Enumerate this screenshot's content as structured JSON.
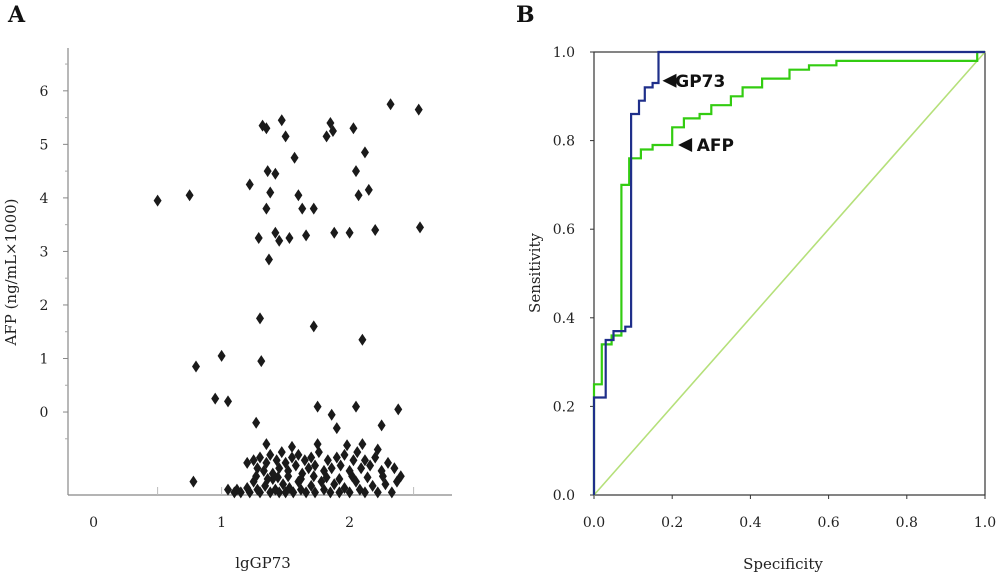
{
  "panels": {
    "a_label": "A",
    "b_label": "B"
  },
  "chart_data": [
    {
      "type": "scatter",
      "panel": "A",
      "xlabel": "lgGP73",
      "ylabel": "AFP (ng/mL×1000)",
      "x_ticks": [
        "0",
        "1",
        "2"
      ],
      "y_ticks": [
        "0",
        "1",
        "2",
        "3",
        "4",
        "5",
        "6"
      ],
      "xlim": [
        -0.2,
        2.8
      ],
      "ylim": [
        -1.55,
        6.8
      ],
      "marker": "diamond",
      "marker_color": "#1a1a1a",
      "points": [
        [
          0.5,
          3.95
        ],
        [
          0.75,
          4.05
        ],
        [
          0.8,
          0.85
        ],
        [
          0.95,
          0.25
        ],
        [
          1.0,
          1.05
        ],
        [
          1.05,
          0.2
        ],
        [
          1.22,
          4.25
        ],
        [
          1.27,
          -0.2
        ],
        [
          1.29,
          3.25
        ],
        [
          1.3,
          1.75
        ],
        [
          1.31,
          0.95
        ],
        [
          1.32,
          5.35
        ],
        [
          1.35,
          5.3
        ],
        [
          1.37,
          2.85
        ],
        [
          1.36,
          4.5
        ],
        [
          1.35,
          3.8
        ],
        [
          1.38,
          4.1
        ],
        [
          1.42,
          4.45
        ],
        [
          1.42,
          3.35
        ],
        [
          1.45,
          3.2
        ],
        [
          1.47,
          5.45
        ],
        [
          1.5,
          5.15
        ],
        [
          1.53,
          3.25
        ],
        [
          1.57,
          4.75
        ],
        [
          1.6,
          4.05
        ],
        [
          1.63,
          3.8
        ],
        [
          1.66,
          3.3
        ],
        [
          1.72,
          1.6
        ],
        [
          1.72,
          3.8
        ],
        [
          1.75,
          0.1
        ],
        [
          1.82,
          5.15
        ],
        [
          1.85,
          5.4
        ],
        [
          1.87,
          5.25
        ],
        [
          1.88,
          3.35
        ],
        [
          1.86,
          -0.05
        ],
        [
          1.9,
          -0.3
        ],
        [
          2.0,
          3.35
        ],
        [
          2.03,
          5.3
        ],
        [
          2.05,
          0.1
        ],
        [
          2.05,
          4.5
        ],
        [
          2.07,
          4.05
        ],
        [
          2.1,
          1.35
        ],
        [
          2.12,
          4.85
        ],
        [
          2.15,
          4.15
        ],
        [
          2.2,
          3.4
        ],
        [
          2.25,
          -0.25
        ],
        [
          2.32,
          5.75
        ],
        [
          2.38,
          0.05
        ],
        [
          2.54,
          5.65
        ],
        [
          2.55,
          3.45
        ],
        [
          0.78,
          -1.3
        ],
        [
          1.05,
          -1.45
        ],
        [
          1.1,
          -1.5
        ],
        [
          1.12,
          -1.45
        ],
        [
          1.15,
          -1.5
        ],
        [
          1.2,
          -1.42
        ],
        [
          1.22,
          -1.5
        ],
        [
          1.25,
          -1.3
        ],
        [
          1.28,
          -1.45
        ],
        [
          1.3,
          -1.5
        ],
        [
          1.34,
          -1.38
        ],
        [
          1.38,
          -1.5
        ],
        [
          1.4,
          -1.25
        ],
        [
          1.42,
          -1.45
        ],
        [
          1.45,
          -1.5
        ],
        [
          1.48,
          -1.35
        ],
        [
          1.5,
          -1.5
        ],
        [
          1.53,
          -1.42
        ],
        [
          1.56,
          -1.5
        ],
        [
          1.6,
          -1.3
        ],
        [
          1.62,
          -1.45
        ],
        [
          1.66,
          -1.5
        ],
        [
          1.7,
          -1.38
        ],
        [
          1.73,
          -1.5
        ],
        [
          1.78,
          -1.3
        ],
        [
          1.8,
          -1.45
        ],
        [
          1.85,
          -1.5
        ],
        [
          1.88,
          -1.35
        ],
        [
          1.92,
          -1.5
        ],
        [
          1.96,
          -1.42
        ],
        [
          2.0,
          -1.5
        ],
        [
          2.05,
          -1.3
        ],
        [
          2.08,
          -1.45
        ],
        [
          2.12,
          -1.5
        ],
        [
          2.18,
          -1.38
        ],
        [
          2.22,
          -1.5
        ],
        [
          2.28,
          -1.35
        ],
        [
          2.33,
          -1.5
        ],
        [
          2.37,
          -1.3
        ],
        [
          1.2,
          -0.95
        ],
        [
          1.25,
          -0.9
        ],
        [
          1.28,
          -1.05
        ],
        [
          1.3,
          -0.85
        ],
        [
          1.33,
          -1.1
        ],
        [
          1.35,
          -0.95
        ],
        [
          1.38,
          -0.8
        ],
        [
          1.4,
          -1.15
        ],
        [
          1.43,
          -0.9
        ],
        [
          1.45,
          -1.05
        ],
        [
          1.47,
          -0.75
        ],
        [
          1.5,
          -0.95
        ],
        [
          1.52,
          -1.1
        ],
        [
          1.55,
          -0.85
        ],
        [
          1.58,
          -1.0
        ],
        [
          1.6,
          -0.8
        ],
        [
          1.63,
          -1.15
        ],
        [
          1.65,
          -0.9
        ],
        [
          1.68,
          -1.05
        ],
        [
          1.7,
          -0.85
        ],
        [
          1.73,
          -1.0
        ],
        [
          1.76,
          -0.75
        ],
        [
          1.8,
          -1.1
        ],
        [
          1.83,
          -0.9
        ],
        [
          1.86,
          -1.05
        ],
        [
          1.9,
          -0.85
        ],
        [
          1.93,
          -1.0
        ],
        [
          1.96,
          -0.8
        ],
        [
          2.0,
          -1.1
        ],
        [
          2.03,
          -0.9
        ],
        [
          2.06,
          -0.75
        ],
        [
          2.09,
          -1.05
        ],
        [
          2.12,
          -0.9
        ],
        [
          2.16,
          -1.0
        ],
        [
          2.2,
          -0.85
        ],
        [
          2.25,
          -1.1
        ],
        [
          2.3,
          -0.95
        ],
        [
          2.35,
          -1.05
        ],
        [
          2.4,
          -1.2
        ],
        [
          1.27,
          -1.2
        ],
        [
          1.36,
          -1.25
        ],
        [
          1.44,
          -1.22
        ],
        [
          1.52,
          -1.2
        ],
        [
          1.62,
          -1.25
        ],
        [
          1.72,
          -1.2
        ],
        [
          1.82,
          -1.22
        ],
        [
          1.92,
          -1.25
        ],
        [
          2.02,
          -1.2
        ],
        [
          2.14,
          -1.22
        ],
        [
          2.26,
          -1.2
        ],
        [
          2.1,
          -0.6
        ],
        [
          1.55,
          -0.65
        ],
        [
          1.75,
          -0.6
        ],
        [
          1.98,
          -0.62
        ],
        [
          1.35,
          -0.6
        ],
        [
          2.22,
          -0.7
        ]
      ]
    },
    {
      "type": "line",
      "panel": "B",
      "xlabel": "Specificity",
      "ylabel": "Sensitivity",
      "x_ticks": [
        "0.0",
        "0.2",
        "0.4",
        "0.6",
        "0.8",
        "1.0"
      ],
      "y_ticks": [
        "0.0",
        "0.2",
        "0.4",
        "0.6",
        "0.8",
        "1.0"
      ],
      "xlim": [
        0,
        1
      ],
      "ylim": [
        0,
        1
      ],
      "series": [
        {
          "name": "GP73",
          "color": "#1f2f8a",
          "points": [
            [
              0,
              0
            ],
            [
              0,
              0.22
            ],
            [
              0.03,
              0.22
            ],
            [
              0.03,
              0.35
            ],
            [
              0.05,
              0.35
            ],
            [
              0.05,
              0.37
            ],
            [
              0.08,
              0.37
            ],
            [
              0.08,
              0.38
            ],
            [
              0.095,
              0.38
            ],
            [
              0.095,
              0.86
            ],
            [
              0.115,
              0.86
            ],
            [
              0.115,
              0.89
            ],
            [
              0.13,
              0.89
            ],
            [
              0.13,
              0.92
            ],
            [
              0.15,
              0.92
            ],
            [
              0.15,
              0.93
            ],
            [
              0.165,
              0.93
            ],
            [
              0.165,
              1.0
            ],
            [
              1.0,
              1.0
            ]
          ]
        },
        {
          "name": "AFP",
          "color": "#33cc11",
          "points": [
            [
              0,
              0
            ],
            [
              0,
              0.25
            ],
            [
              0.02,
              0.25
            ],
            [
              0.02,
              0.34
            ],
            [
              0.045,
              0.34
            ],
            [
              0.045,
              0.36
            ],
            [
              0.07,
              0.36
            ],
            [
              0.07,
              0.7
            ],
            [
              0.09,
              0.7
            ],
            [
              0.09,
              0.76
            ],
            [
              0.12,
              0.76
            ],
            [
              0.12,
              0.78
            ],
            [
              0.15,
              0.78
            ],
            [
              0.15,
              0.79
            ],
            [
              0.2,
              0.79
            ],
            [
              0.2,
              0.83
            ],
            [
              0.23,
              0.83
            ],
            [
              0.23,
              0.85
            ],
            [
              0.27,
              0.85
            ],
            [
              0.27,
              0.86
            ],
            [
              0.3,
              0.86
            ],
            [
              0.3,
              0.88
            ],
            [
              0.35,
              0.88
            ],
            [
              0.35,
              0.9
            ],
            [
              0.38,
              0.9
            ],
            [
              0.38,
              0.92
            ],
            [
              0.43,
              0.92
            ],
            [
              0.43,
              0.94
            ],
            [
              0.5,
              0.94
            ],
            [
              0.5,
              0.96
            ],
            [
              0.55,
              0.96
            ],
            [
              0.55,
              0.97
            ],
            [
              0.62,
              0.97
            ],
            [
              0.62,
              0.98
            ],
            [
              0.98,
              0.98
            ],
            [
              0.98,
              1.0
            ],
            [
              1.0,
              1.0
            ]
          ]
        },
        {
          "name": "",
          "color": "#b5e07a",
          "points": [
            [
              0,
              0
            ],
            [
              1,
              1
            ]
          ]
        }
      ],
      "annotations": [
        {
          "text": "GP73",
          "arrow_to": [
            0.17,
            0.935
          ],
          "text_at": [
            0.305,
            0.935
          ]
        },
        {
          "text": "AFP",
          "arrow_to": [
            0.21,
            0.79
          ],
          "text_at": [
            0.36,
            0.79
          ]
        }
      ]
    }
  ]
}
